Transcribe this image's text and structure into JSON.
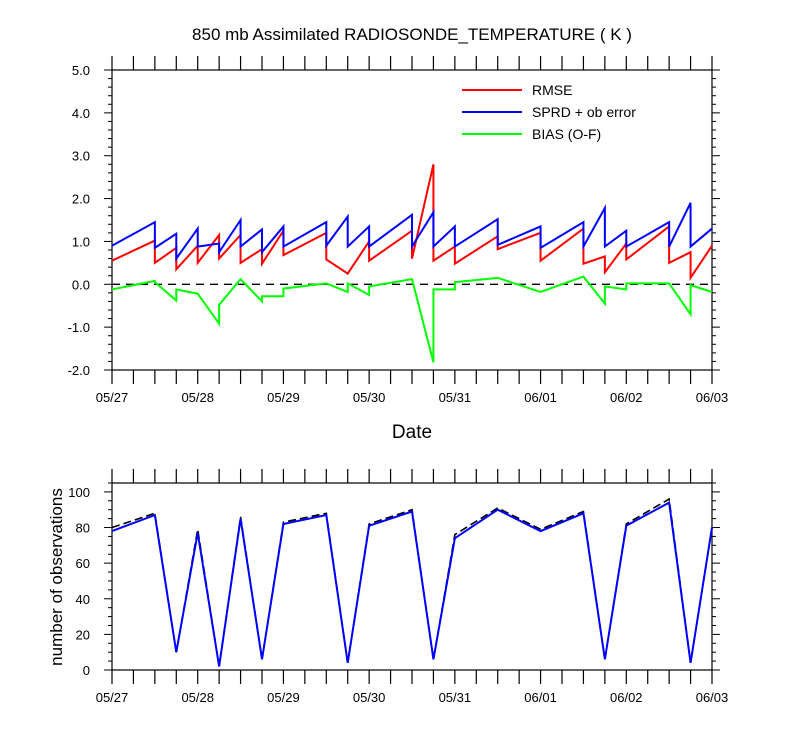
{
  "chart_data": [
    {
      "type": "line",
      "title": "850 mb Assimilated RADIOSONDE_TEMPERATURE ( K )",
      "xlabel": "Date",
      "ylabel": "",
      "x_range_days": [
        0,
        7
      ],
      "ylim": [
        -2.0,
        5.0
      ],
      "y_ticks": [
        -2.0,
        -1.0,
        0.0,
        1.0,
        2.0,
        3.0,
        4.0,
        5.0
      ],
      "y_tick_labels": [
        "-2.0",
        "-1.0",
        "0.0",
        "1.0",
        "2.0",
        "3.0",
        "4.0",
        "5.0"
      ],
      "x_tick_labels": [
        "05/27",
        "05/28",
        "05/29",
        "05/30",
        "05/31",
        "06/01",
        "06/02",
        "06/03"
      ],
      "legend": {
        "position": "top-right",
        "entries": [
          {
            "label": "RMSE",
            "color": "#ff0000"
          },
          {
            "label": "SPRD + ob error",
            "color": "#0000ff"
          },
          {
            "label": "BIAS (O-F)",
            "color": "#00ff00"
          }
        ]
      },
      "zero_line": {
        "y": 0.0,
        "style": "dashed",
        "color": "#000000"
      },
      "series": [
        {
          "name": "RMSE",
          "color": "#ff0000",
          "points": [
            [
              0.0,
              0.55
            ],
            [
              0.5,
              1.02
            ],
            [
              0.5,
              0.5
            ],
            [
              0.75,
              0.85
            ],
            [
              0.75,
              0.35
            ],
            [
              1.0,
              0.9
            ],
            [
              1.0,
              0.5
            ],
            [
              1.25,
              1.15
            ],
            [
              1.25,
              0.6
            ],
            [
              1.5,
              1.15
            ],
            [
              1.5,
              0.5
            ],
            [
              1.75,
              0.82
            ],
            [
              1.75,
              0.48
            ],
            [
              2.0,
              1.25
            ],
            [
              2.0,
              0.68
            ],
            [
              2.5,
              1.2
            ],
            [
              2.5,
              0.58
            ],
            [
              2.75,
              0.25
            ],
            [
              3.0,
              1.0
            ],
            [
              3.0,
              0.55
            ],
            [
              3.5,
              1.25
            ],
            [
              3.5,
              0.6
            ],
            [
              3.75,
              2.8
            ],
            [
              3.75,
              0.55
            ],
            [
              4.0,
              0.88
            ],
            [
              4.0,
              0.48
            ],
            [
              4.5,
              1.12
            ],
            [
              4.5,
              0.82
            ],
            [
              5.0,
              1.2
            ],
            [
              5.0,
              0.55
            ],
            [
              5.5,
              1.3
            ],
            [
              5.5,
              0.48
            ],
            [
              5.75,
              0.65
            ],
            [
              5.75,
              0.28
            ],
            [
              6.0,
              0.95
            ],
            [
              6.0,
              0.58
            ],
            [
              6.5,
              1.35
            ],
            [
              6.5,
              0.5
            ],
            [
              6.75,
              0.75
            ],
            [
              6.75,
              0.15
            ],
            [
              7.0,
              0.9
            ]
          ]
        },
        {
          "name": "SPRD + ob error",
          "color": "#0000ff",
          "points": [
            [
              0.0,
              0.9
            ],
            [
              0.5,
              1.45
            ],
            [
              0.5,
              0.85
            ],
            [
              0.75,
              1.18
            ],
            [
              0.75,
              0.6
            ],
            [
              1.0,
              1.3
            ],
            [
              1.0,
              0.88
            ],
            [
              1.25,
              0.95
            ],
            [
              1.25,
              0.75
            ],
            [
              1.5,
              1.5
            ],
            [
              1.5,
              0.88
            ],
            [
              1.75,
              1.28
            ],
            [
              1.75,
              0.75
            ],
            [
              2.0,
              1.35
            ],
            [
              2.0,
              0.88
            ],
            [
              2.5,
              1.45
            ],
            [
              2.5,
              0.9
            ],
            [
              2.75,
              1.58
            ],
            [
              2.75,
              0.88
            ],
            [
              3.0,
              1.35
            ],
            [
              3.0,
              0.88
            ],
            [
              3.5,
              1.62
            ],
            [
              3.5,
              0.88
            ],
            [
              3.75,
              1.68
            ],
            [
              3.75,
              0.88
            ],
            [
              4.0,
              1.35
            ],
            [
              4.0,
              0.88
            ],
            [
              4.5,
              1.52
            ],
            [
              4.5,
              0.92
            ],
            [
              5.0,
              1.35
            ],
            [
              5.0,
              0.85
            ],
            [
              5.5,
              1.45
            ],
            [
              5.5,
              0.88
            ],
            [
              5.75,
              1.78
            ],
            [
              5.75,
              0.88
            ],
            [
              6.0,
              1.25
            ],
            [
              6.0,
              0.88
            ],
            [
              6.5,
              1.45
            ],
            [
              6.5,
              0.88
            ],
            [
              6.75,
              1.9
            ],
            [
              6.75,
              0.88
            ],
            [
              7.0,
              1.3
            ]
          ]
        },
        {
          "name": "BIAS (O-F)",
          "color": "#00ff00",
          "points": [
            [
              0.0,
              -0.12
            ],
            [
              0.5,
              0.08
            ],
            [
              0.5,
              0.05
            ],
            [
              0.75,
              -0.38
            ],
            [
              0.75,
              -0.12
            ],
            [
              1.0,
              -0.22
            ],
            [
              1.25,
              -0.92
            ],
            [
              1.25,
              -0.48
            ],
            [
              1.5,
              0.12
            ],
            [
              1.75,
              -0.4
            ],
            [
              1.75,
              -0.28
            ],
            [
              2.0,
              -0.28
            ],
            [
              2.0,
              -0.1
            ],
            [
              2.5,
              0.02
            ],
            [
              2.75,
              -0.18
            ],
            [
              2.75,
              0.02
            ],
            [
              3.0,
              -0.25
            ],
            [
              3.0,
              -0.05
            ],
            [
              3.5,
              0.12
            ],
            [
              3.75,
              -1.82
            ],
            [
              3.75,
              -0.12
            ],
            [
              4.0,
              -0.12
            ],
            [
              4.0,
              0.05
            ],
            [
              4.5,
              0.15
            ],
            [
              5.0,
              -0.18
            ],
            [
              5.5,
              0.18
            ],
            [
              5.75,
              -0.45
            ],
            [
              5.75,
              -0.05
            ],
            [
              6.0,
              -0.12
            ],
            [
              6.0,
              0.02
            ],
            [
              6.5,
              0.02
            ],
            [
              6.75,
              -0.7
            ],
            [
              6.75,
              -0.02
            ],
            [
              7.0,
              -0.18
            ]
          ]
        }
      ]
    },
    {
      "type": "line",
      "title": "",
      "xlabel": "",
      "ylabel": "number of observations",
      "x_range_days": [
        0,
        7
      ],
      "ylim": [
        0,
        105
      ],
      "y_ticks": [
        0,
        20,
        40,
        60,
        80,
        100
      ],
      "y_tick_labels": [
        "0",
        "20",
        "40",
        "60",
        "80",
        "100"
      ],
      "x_tick_labels": [
        "05/27",
        "05/28",
        "05/29",
        "05/30",
        "05/31",
        "06/01",
        "06/02",
        "06/03"
      ],
      "series": [
        {
          "name": "observations (dashed)",
          "color": "#000000",
          "style": "dashed",
          "points": [
            [
              0.0,
              80
            ],
            [
              0.5,
              88
            ],
            [
              0.75,
              10
            ],
            [
              1.0,
              79
            ],
            [
              1.25,
              2
            ],
            [
              1.5,
              86
            ],
            [
              1.75,
              6
            ],
            [
              2.0,
              83
            ],
            [
              2.5,
              88
            ],
            [
              2.75,
              4
            ],
            [
              3.0,
              82
            ],
            [
              3.5,
              90
            ],
            [
              3.75,
              6
            ],
            [
              4.0,
              76
            ],
            [
              4.5,
              91
            ],
            [
              5.0,
              79
            ],
            [
              5.5,
              89
            ],
            [
              5.75,
              6
            ],
            [
              6.0,
              82
            ],
            [
              6.5,
              96
            ],
            [
              6.75,
              4
            ],
            [
              7.0,
              80
            ]
          ]
        },
        {
          "name": "observations (solid)",
          "color": "#0000ff",
          "style": "solid",
          "points": [
            [
              0.0,
              78
            ],
            [
              0.5,
              87
            ],
            [
              0.75,
              10
            ],
            [
              1.0,
              77
            ],
            [
              1.25,
              2
            ],
            [
              1.5,
              85
            ],
            [
              1.75,
              6
            ],
            [
              2.0,
              82
            ],
            [
              2.5,
              87
            ],
            [
              2.75,
              4
            ],
            [
              3.0,
              81
            ],
            [
              3.5,
              89
            ],
            [
              3.75,
              6
            ],
            [
              4.0,
              74
            ],
            [
              4.5,
              90
            ],
            [
              5.0,
              78
            ],
            [
              5.5,
              88
            ],
            [
              5.75,
              6
            ],
            [
              6.0,
              81
            ],
            [
              6.5,
              94
            ],
            [
              6.75,
              4
            ],
            [
              7.0,
              80
            ]
          ]
        }
      ]
    }
  ]
}
